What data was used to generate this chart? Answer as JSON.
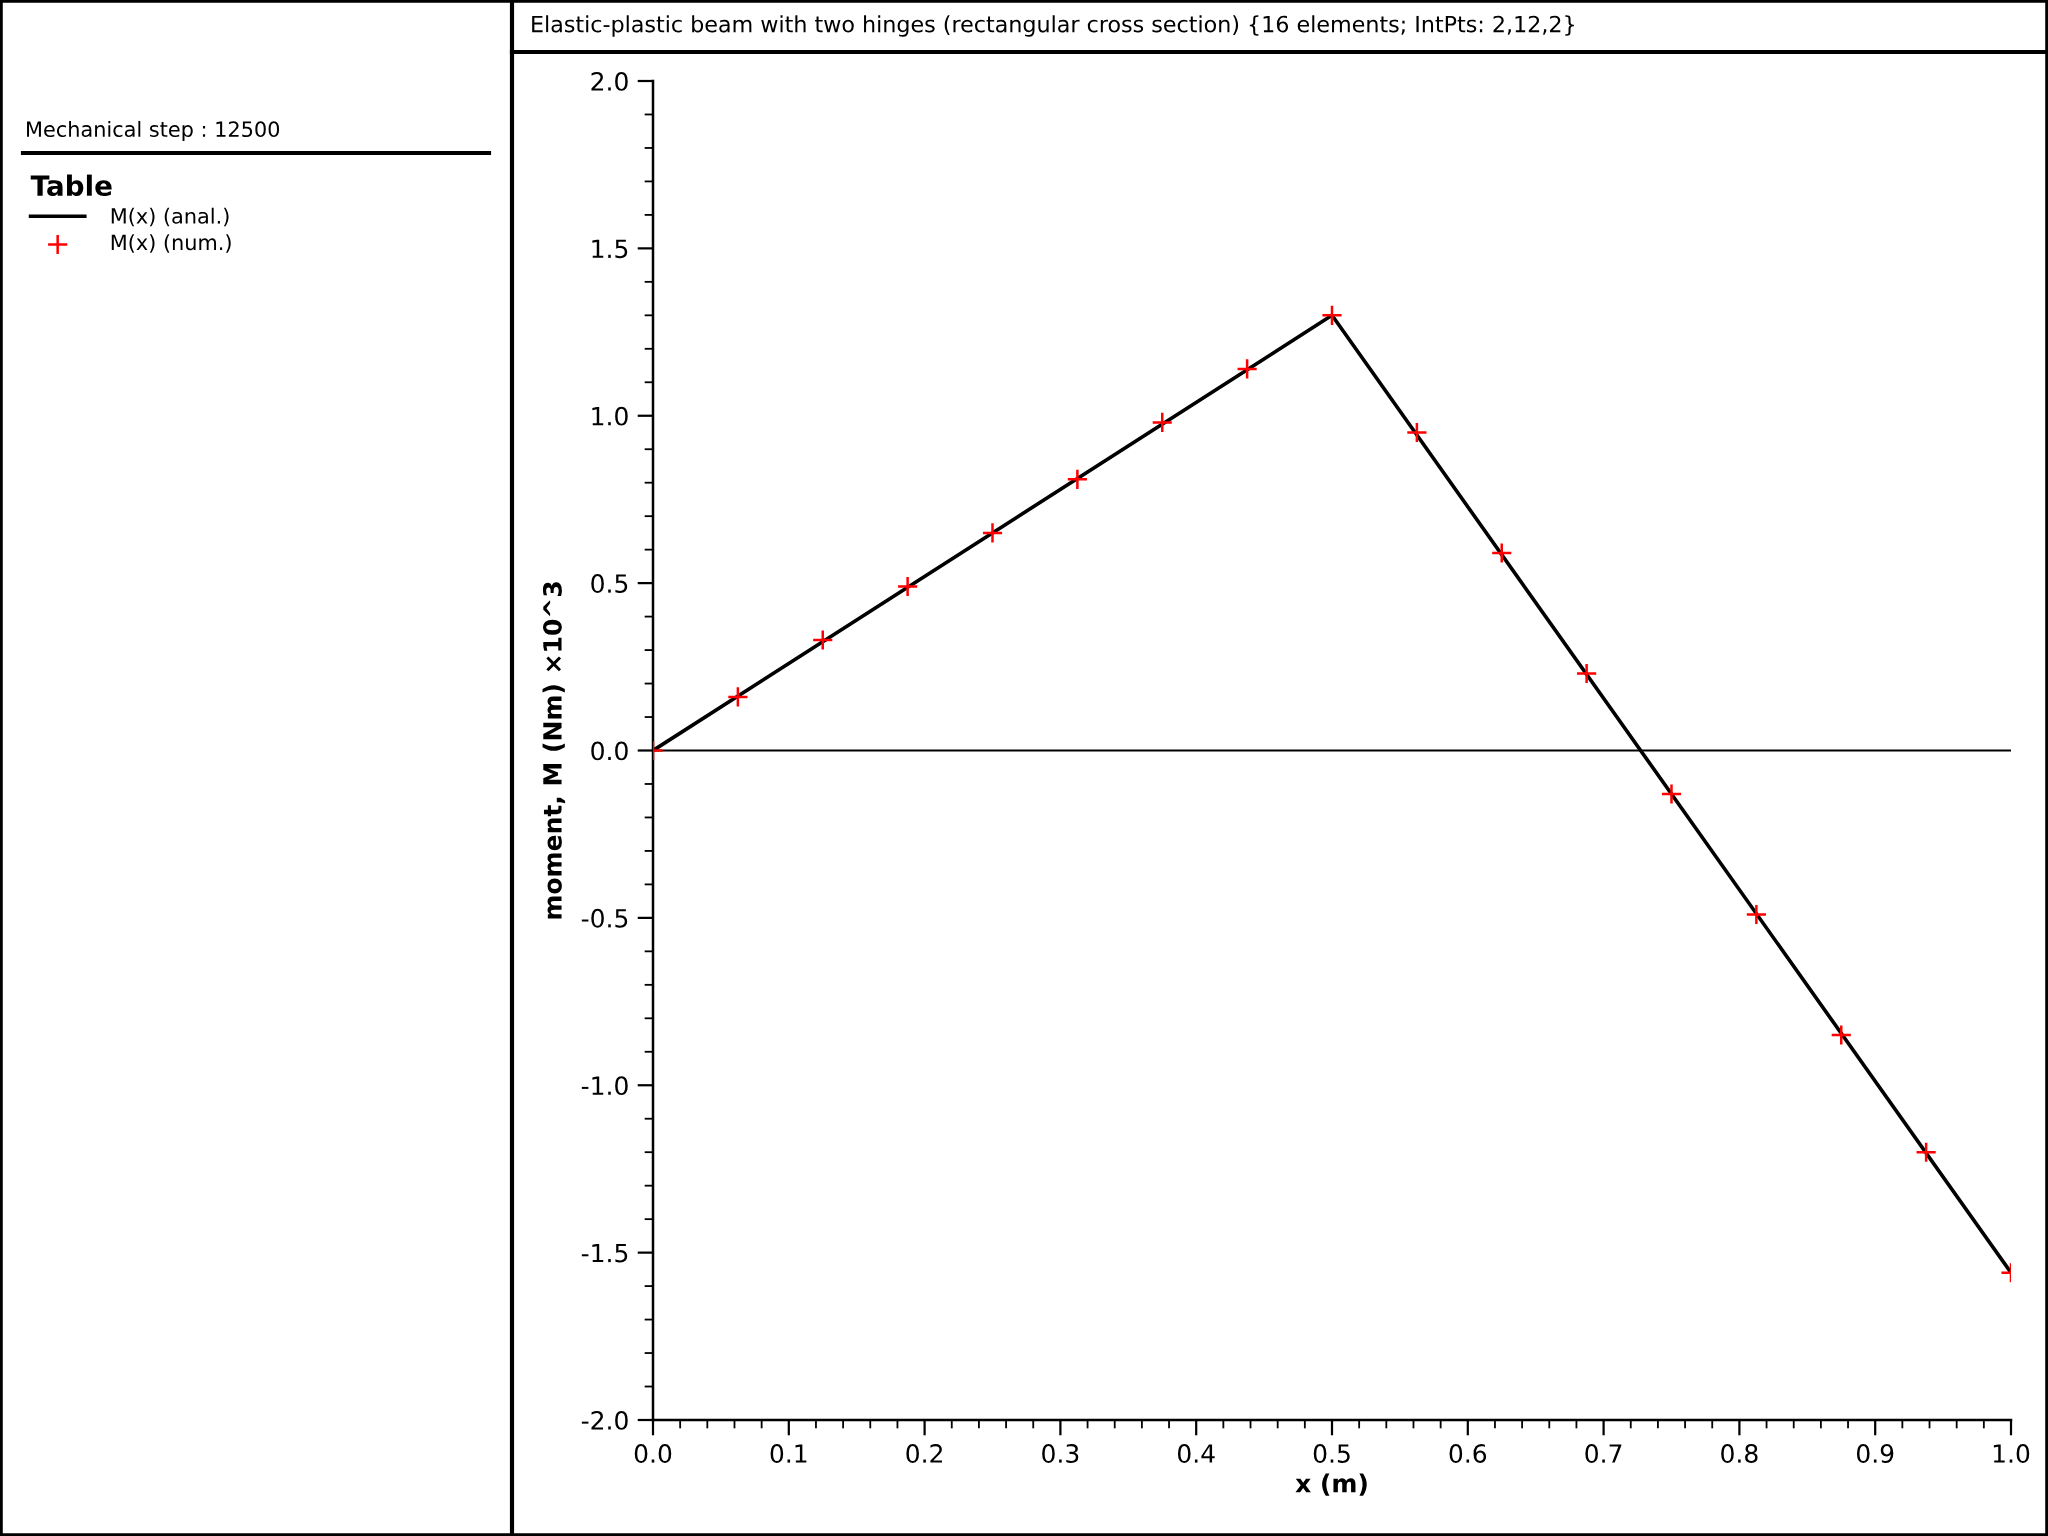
{
  "chart_data": {
    "type": "line",
    "title": "Elastic-plastic beam with two hinges (rectangular cross section) {16 elements; IntPts: 2,12,2}",
    "xlabel": "x (m)",
    "ylabel": "moment, M (Nm) ×10^3",
    "legend_title": "Table",
    "legend": "left",
    "annotations": [
      "Mechanical step : 12500"
    ],
    "series": [
      {
        "name": "M(x) (anal.)",
        "color": "#000000",
        "line_style": "solid",
        "x": [
          0,
          0.5,
          1.0
        ],
        "values": [
          0,
          1.3,
          -1.56
        ]
      },
      {
        "name": "M(x) (num.)",
        "type": "scatter",
        "color": "#ff0000",
        "marker": "cross",
        "x": [
          0,
          0.0625,
          0.125,
          0.1875,
          0.25,
          0.3125,
          0.375,
          0.4375,
          0.5,
          0.5625,
          0.625,
          0.6875,
          0.75,
          0.8125,
          0.875,
          0.9375,
          1.0
        ],
        "values": [
          0,
          0.16,
          0.33,
          0.49,
          0.65,
          0.81,
          0.98,
          1.14,
          1.3,
          0.95,
          0.59,
          0.23,
          -0.13,
          -0.49,
          -0.85,
          -1.2,
          -1.56
        ]
      }
    ],
    "ref_lines": [
      {
        "axis": "y",
        "value": 0,
        "color": "#000000",
        "line_style": "solid"
      }
    ],
    "xlim": [
      0,
      1.0
    ],
    "ylim": [
      -2.0,
      2.0
    ],
    "xticks": [
      {
        "value": 0,
        "label": "0.0"
      },
      {
        "value": 0.1,
        "label": "0.1"
      },
      {
        "value": 0.2,
        "label": "0.2"
      },
      {
        "value": 0.3,
        "label": "0.3"
      },
      {
        "value": 0.4,
        "label": "0.4"
      },
      {
        "value": 0.5,
        "label": "0.5"
      },
      {
        "value": 0.6,
        "label": "0.6"
      },
      {
        "value": 0.7,
        "label": "0.7"
      },
      {
        "value": 0.8,
        "label": "0.8"
      },
      {
        "value": 0.9,
        "label": "0.9"
      },
      {
        "value": 1.0,
        "label": "1.0"
      }
    ],
    "yticks": [
      {
        "value": -2.0,
        "label": "-2.0"
      },
      {
        "value": -1.5,
        "label": "-1.5"
      },
      {
        "value": -1.0,
        "label": "-1.0"
      },
      {
        "value": -0.5,
        "label": "-0.5"
      },
      {
        "value": 0,
        "label": "0.0"
      },
      {
        "value": 0.5,
        "label": "0.5"
      },
      {
        "value": 1.0,
        "label": "1.0"
      },
      {
        "value": 1.5,
        "label": "1.5"
      },
      {
        "value": 2.0,
        "label": "2.0"
      }
    ]
  }
}
